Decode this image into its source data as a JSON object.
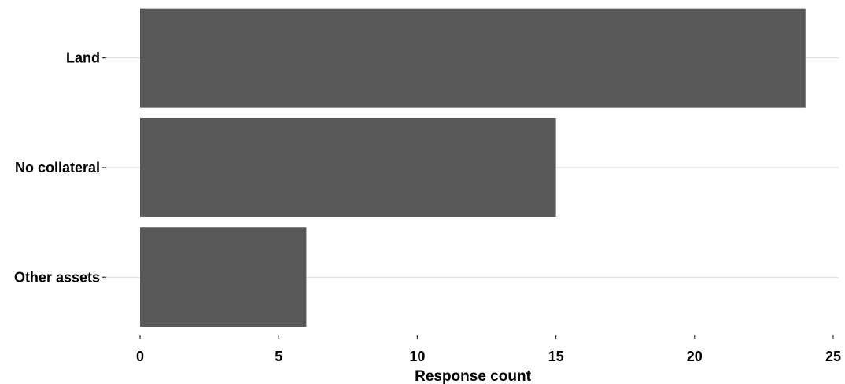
{
  "chart_data": {
    "type": "bar",
    "orientation": "horizontal",
    "categories": [
      "Land",
      "No collateral",
      "Other assets"
    ],
    "values": [
      24,
      15,
      6
    ],
    "title": "",
    "xlabel": "Response count",
    "ylabel": "",
    "xlim": [
      0,
      25
    ],
    "x_ticks": [
      0,
      5,
      10,
      15,
      20,
      25
    ],
    "grid": "horizontal major lines at category positions",
    "legend": "none",
    "bar_color": "#595959",
    "grid_color": "#d9d9d9",
    "tick_color": "#333333"
  }
}
